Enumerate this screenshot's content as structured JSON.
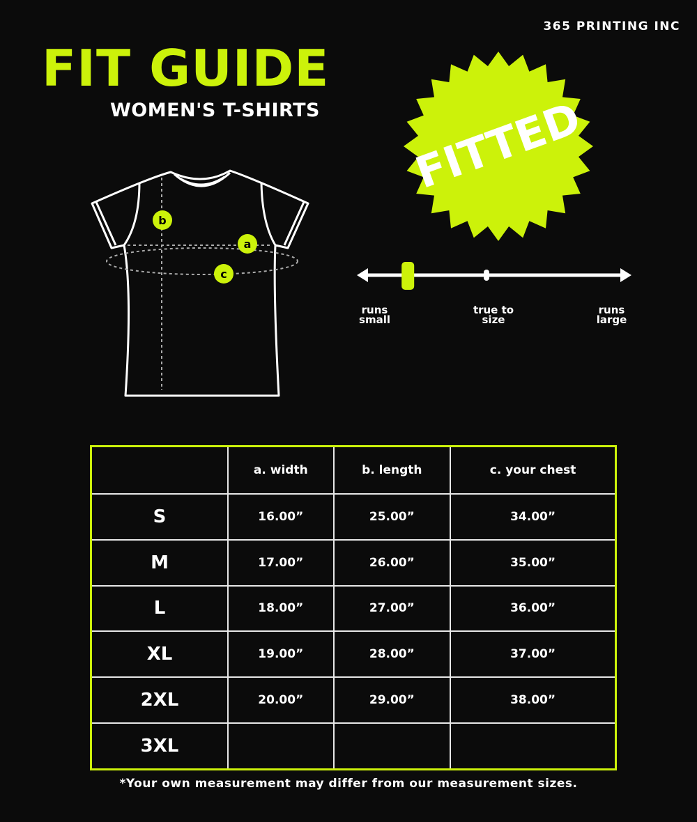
{
  "brand": "365 PRINTING INC",
  "title": "FIT GUIDE",
  "subtitle": "WOMEN'S T-SHIRTS",
  "badge": {
    "label": "FITTED",
    "color": "#ccf20a"
  },
  "diagram": {
    "markers": [
      "a",
      "b",
      "c"
    ]
  },
  "fit_scale": {
    "labels": [
      "runs small",
      "true to size",
      "runs large"
    ],
    "value": 0.18,
    "value_note": "0 = runs small, 0.5 = true to size, 1 = runs large"
  },
  "table": {
    "headers": [
      "",
      "a. width",
      "b. length",
      "c. your chest"
    ],
    "rows": [
      [
        "S",
        "16.00”",
        "25.00”",
        "34.00”"
      ],
      [
        "M",
        "17.00”",
        "26.00”",
        "35.00”"
      ],
      [
        "L",
        "18.00”",
        "27.00”",
        "36.00”"
      ],
      [
        "XL",
        "19.00”",
        "28.00”",
        "37.00”"
      ],
      [
        "2XL",
        "20.00”",
        "29.00”",
        "38.00”"
      ],
      [
        "3XL",
        "",
        "",
        ""
      ]
    ]
  },
  "footnote": "*Your own measurement may differ from our measurement sizes.",
  "colors": {
    "accent": "#ccf20a",
    "background": "#0b0b0b",
    "text": "#ffffff"
  }
}
